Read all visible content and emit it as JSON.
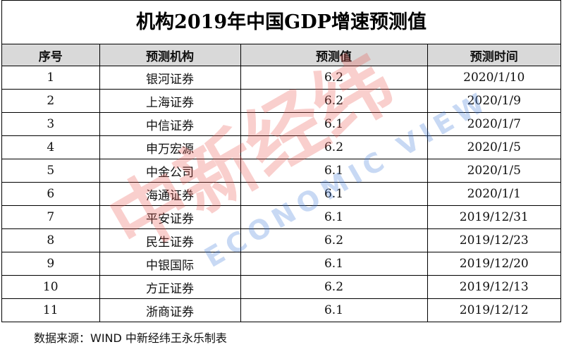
{
  "header": {
    "title": "机构2019年中国GDP增速预测值"
  },
  "table": {
    "columns": [
      "序号",
      "预测机构",
      "预测值",
      "预测时间"
    ],
    "rows": [
      [
        1,
        "银河证券",
        6.2,
        "2020/1/10"
      ],
      [
        2,
        "上海证券",
        6.2,
        "2020/1/9"
      ],
      [
        3,
        "中信证券",
        6.1,
        "2020/1/7"
      ],
      [
        4,
        "申万宏源",
        6.2,
        "2020/1/5"
      ],
      [
        5,
        "中金公司",
        6.1,
        "2020/1/5"
      ],
      [
        6,
        "海通证券",
        6.1,
        "2020/1/1"
      ],
      [
        7,
        "平安证券",
        6.1,
        "2019/12/31"
      ],
      [
        8,
        "民生证券",
        6.2,
        "2019/12/23"
      ],
      [
        9,
        "中银国际",
        6.1,
        "2019/12/20"
      ],
      [
        10,
        "方正证券",
        6.2,
        "2019/12/13"
      ],
      [
        11,
        "浙商证券",
        6.1,
        "2019/12/12"
      ]
    ]
  },
  "footer": {
    "source": "数据来源：WIND 中新经纬王永乐制表"
  },
  "watermark": {
    "brand": "中新经纬",
    "slogan": "ECONOMIC VIEW"
  }
}
